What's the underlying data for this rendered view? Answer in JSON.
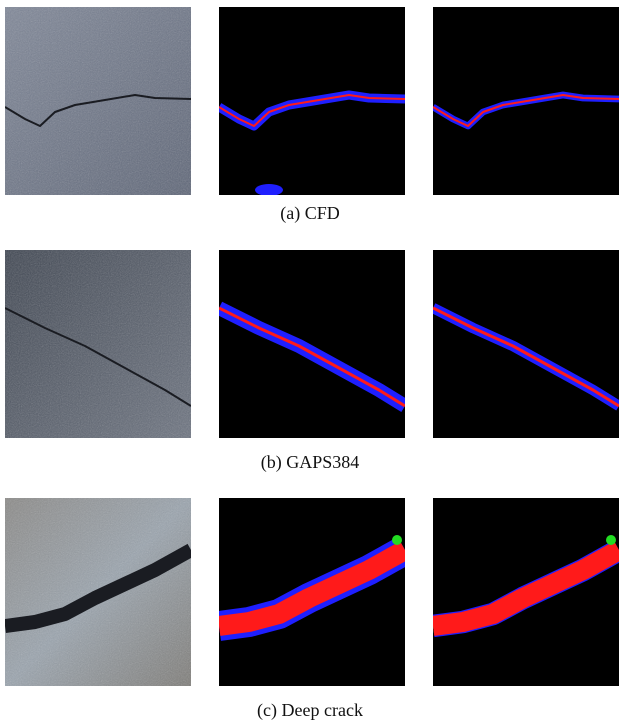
{
  "figure": {
    "panels": [
      {
        "caption": "(a) CFD"
      },
      {
        "caption": "(b) GAPS384"
      },
      {
        "caption": "(c) Deep crack"
      }
    ]
  }
}
